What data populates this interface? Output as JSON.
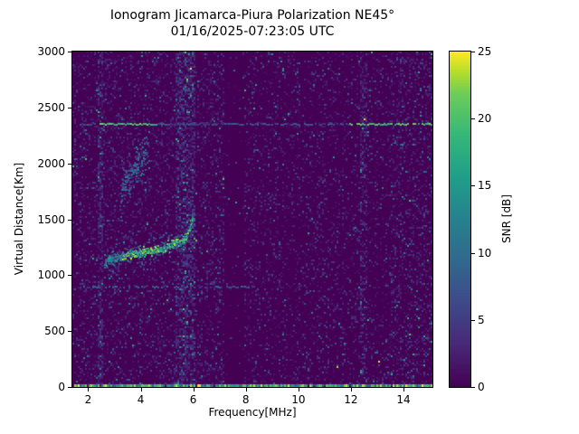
{
  "colors": {
    "figure_background": "#ffffff",
    "axis": "#000000",
    "text": "#000000",
    "plot_background": "#440154"
  },
  "chart_data": {
    "type": "heatmap",
    "title": "Ionogram Jicamarca-Piura Polarization NE45°",
    "subtitle": "01/16/2025-07:23:05 UTC",
    "xlabel": "Frequency[MHz]",
    "ylabel": "Virtual Distance[Km]",
    "colorbar_label": "SNR [dB]",
    "colormap": "viridis",
    "colormap_stops": [
      [
        0.0,
        "#440154"
      ],
      [
        0.125,
        "#482878"
      ],
      [
        0.25,
        "#3e4a89"
      ],
      [
        0.375,
        "#31688e"
      ],
      [
        0.5,
        "#26828e"
      ],
      [
        0.625,
        "#1f9e89"
      ],
      [
        0.75,
        "#35b779"
      ],
      [
        0.875,
        "#6dcd59"
      ],
      [
        0.94,
        "#b5de2b"
      ],
      [
        1.0,
        "#fde725"
      ]
    ],
    "xlim": [
      1.4,
      15.1
    ],
    "ylim": [
      0,
      3000
    ],
    "clim": [
      0,
      25
    ],
    "xticks": [
      2,
      4,
      6,
      8,
      10,
      12,
      14
    ],
    "yticks": [
      0,
      500,
      1000,
      1500,
      2000,
      2500,
      3000
    ],
    "colorbar_ticks": [
      0,
      5,
      10,
      15,
      20,
      25
    ],
    "background_snr_db": 0,
    "noise_model": {
      "seed": 42,
      "speckle_probability_low_band": 0.3,
      "speckle_probability_high_band": 0.22,
      "speckle_mean_snr_db": 2.2,
      "bright_dot_probability": 0.012,
      "bright_dot_extra_snr_db": 8
    },
    "features": {
      "zero_range_line": {
        "virtual_distance_km": 0,
        "freq_range_mhz": [
          1.4,
          15.1
        ],
        "snr_db_range": [
          8,
          25
        ],
        "description": "bright zero-range echo line across all frequencies"
      },
      "interference_lines": [
        {
          "virtual_distance_km": 2350,
          "thickness_km": 25,
          "base_snr_db": 6,
          "bright_snr_db": 23,
          "freq_range_mhz": [
            1.4,
            15.1
          ],
          "bright_freq_ranges_mhz": [
            [
              2.3,
              4.6
            ],
            [
              11.9,
              15.1
            ]
          ],
          "description": "broadband RFI line, brightest at low and high frequencies"
        },
        {
          "virtual_distance_km": 900,
          "thickness_km": 15,
          "base_snr_db": 7,
          "freq_range_mhz": [
            1.8,
            8.3
          ],
          "description": "weak teal RFI line on low-frequency half"
        }
      ],
      "vertical_bands": [
        {
          "freq_range_mhz": [
            2.35,
            2.6
          ],
          "prob_boost": 0.3,
          "snr_boost_db": 2,
          "bright_prob": 0.02,
          "description": "noisy column"
        },
        {
          "freq_range_mhz": [
            5.35,
            6.05
          ],
          "prob_boost": 0.3,
          "snr_boost_db": 2.5,
          "bright_prob": 0.02,
          "description": "noisy column"
        },
        {
          "freq_range_mhz": [
            7.15,
            7.95
          ],
          "prob_boost": -0.26,
          "snr_boost_db": -1,
          "description": "quiet blanked band"
        },
        {
          "freq_range_mhz": [
            12.35,
            12.65
          ],
          "prob_boost": 0.28,
          "snr_boost_db": 2,
          "bright_prob": 0.015,
          "description": "noisy column"
        },
        {
          "freq_range_mhz": [
            13.5,
            15.1
          ],
          "prob_boost": 0.08,
          "snr_boost_db": 1,
          "description": "slightly elevated noise"
        }
      ],
      "echo_trace": {
        "points": [
          {
            "freq_mhz": 2.6,
            "virtual_distance_km": 1130
          },
          {
            "freq_mhz": 3.0,
            "virtual_distance_km": 1160
          },
          {
            "freq_mhz": 3.6,
            "virtual_distance_km": 1190
          },
          {
            "freq_mhz": 4.2,
            "virtual_distance_km": 1215
          },
          {
            "freq_mhz": 4.8,
            "virtual_distance_km": 1245
          },
          {
            "freq_mhz": 5.3,
            "virtual_distance_km": 1285
          },
          {
            "freq_mhz": 5.7,
            "virtual_distance_km": 1340
          },
          {
            "freq_mhz": 6.0,
            "virtual_distance_km": 1520
          }
        ],
        "spread_km": 45,
        "snr_db_range": [
          10,
          25
        ],
        "description": "bright ionospheric echo trace rising from ~1130 km at 2.6 MHz to ~1520 km at 6 MHz"
      },
      "diffuse_scatter": {
        "freq_range_mhz": [
          3.2,
          4.3
        ],
        "virtual_distance_range_km": [
          1750,
          2150
        ],
        "snr_db_range": [
          4,
          12
        ],
        "dot_count": 140,
        "description": "faint diagonal scatter streak"
      }
    }
  }
}
